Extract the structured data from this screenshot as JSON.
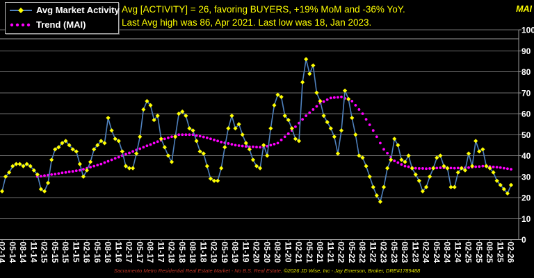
{
  "header": {
    "title_line1": "Avg [ACTIVITY] = 26, favoring BUYERS, +19% MoM and -36% YoY.",
    "title_line2": "Last Avg high was 86, Apr 2021. Last low was 18, Jan 2023.",
    "axis_unit_label": "MAI"
  },
  "legend": {
    "series1_label": "Avg Market Activity",
    "series2_label": "Trend (MAI)"
  },
  "footer": {
    "left": "Sacramento Metro Residential Real Estate Market - No B.S. Real Estate, ",
    "right": "©2026 JD Wise, Inc - Jay Emerson, Broker, DRE#1789488"
  },
  "colors": {
    "background": "#000000",
    "title_text": "#ffff00",
    "avg_line": "#4f81bd",
    "avg_marker": "#ffff00",
    "trend_dots": "#ff00ff",
    "gridline": "#6e6e6e",
    "axis_border": "#9a9a9a",
    "axis_text": "#ffffff",
    "footer_red": "#bf3626",
    "footer_yellow": "#e0e000"
  },
  "chart_data": {
    "type": "line",
    "title": "Avg [ACTIVITY] = 26, favoring BUYERS, +19% MoM and -36% YoY. Last Avg high was 86, Apr 2021. Last low was 18, Jan 2023.",
    "xlabel": "Month (MM-YY), monthly points Feb 2014 - Feb 2026",
    "ylabel": "MAI",
    "ylim": [
      0,
      100
    ],
    "y_ticks": [
      0,
      10,
      20,
      30,
      40,
      50,
      60,
      70,
      80,
      90,
      100
    ],
    "grid": "horizontal",
    "legend_position": "top-left",
    "x_start_month": "2014-02",
    "x_end_month": "2026-02",
    "x_tick_every_months": 3,
    "x_tick_labels": [
      "02-14",
      "05-14",
      "08-14",
      "11-14",
      "02-15",
      "05-15",
      "08-15",
      "11-15",
      "02-16",
      "05-16",
      "08-16",
      "11-16",
      "02-17",
      "05-17",
      "08-17",
      "11-17",
      "02-18",
      "05-18",
      "08-18",
      "11-18",
      "02-19",
      "05-19",
      "08-19",
      "11-19",
      "02-20",
      "05-20",
      "08-20",
      "11-20",
      "02-21",
      "05-21",
      "08-21",
      "11-21",
      "02-22",
      "05-22",
      "08-22",
      "11-22",
      "02-23",
      "05-23",
      "08-23",
      "11-23",
      "02-24",
      "05-24",
      "08-24",
      "11-24",
      "02-25",
      "05-25",
      "08-25",
      "11-25",
      "02-26"
    ],
    "series": [
      {
        "name": "Avg Market Activity",
        "style": "solid-line-with-diamond-markers",
        "start_index": 0,
        "values": [
          23,
          30,
          32,
          35,
          36,
          36,
          35,
          36,
          35,
          33,
          31,
          24,
          23,
          27,
          38,
          43,
          44,
          46,
          47,
          45,
          43,
          42,
          36,
          30,
          33,
          37,
          43,
          45,
          47,
          46,
          58,
          52,
          48,
          47,
          42,
          35,
          34,
          34,
          41,
          49,
          62,
          66,
          64,
          57,
          59,
          48,
          44,
          40,
          37,
          49,
          60,
          61,
          59,
          53,
          52,
          47,
          42,
          41,
          35,
          29,
          28,
          28,
          34,
          44,
          53,
          59,
          53,
          55,
          50,
          46,
          43,
          38,
          35,
          34,
          45,
          40,
          53,
          64,
          69,
          68,
          59,
          57,
          53,
          48,
          47,
          75,
          86,
          79,
          83,
          70,
          66,
          59,
          56,
          53,
          49,
          41,
          52,
          71,
          67,
          58,
          50,
          40,
          39,
          35,
          30,
          25,
          21,
          18,
          25,
          34,
          38,
          48,
          45,
          38,
          37,
          40,
          34,
          31,
          28,
          23,
          25,
          30,
          34,
          39,
          40,
          35,
          34,
          25,
          25,
          32,
          34,
          33,
          41,
          35,
          47,
          42,
          43,
          35,
          34,
          32,
          28,
          26,
          24,
          22,
          26
        ]
      },
      {
        "name": "Trend (MAI)",
        "style": "dotted",
        "start_index": 10,
        "values": [
          30.0,
          30.2,
          30.5,
          30.7,
          31.0,
          31.2,
          31.5,
          31.8,
          32.0,
          32.3,
          32.5,
          32.8,
          33.0,
          33.5,
          34.0,
          34.5,
          35.0,
          35.5,
          36.0,
          36.7,
          37.3,
          38.0,
          38.7,
          39.3,
          40.0,
          40.7,
          41.3,
          42.0,
          42.7,
          43.3,
          44.0,
          44.7,
          45.3,
          46.0,
          46.7,
          47.3,
          48.0,
          48.5,
          49.0,
          49.5,
          50.0,
          50.0,
          50.0,
          50.0,
          50.0,
          49.6,
          49.3,
          48.9,
          48.5,
          48.0,
          47.5,
          47.0,
          46.5,
          46.1,
          45.8,
          45.4,
          45.0,
          44.8,
          44.6,
          44.4,
          44.2,
          44.2,
          44.1,
          44.0,
          44.0,
          44.5,
          45.0,
          45.5,
          46.0,
          47.5,
          49.0,
          50.5,
          52.0,
          53.8,
          55.5,
          57.3,
          59.0,
          60.5,
          62.0,
          63.5,
          65.0,
          65.8,
          66.7,
          67.5,
          67.7,
          67.8,
          68.0,
          67.3,
          66.7,
          66.0,
          64.0,
          62.0,
          60.0,
          57.3,
          54.7,
          52.0,
          49.0,
          46.0,
          43.0,
          41.2,
          39.3,
          37.5,
          36.7,
          35.8,
          35.0,
          34.7,
          34.3,
          34.0,
          33.9,
          33.9,
          33.8,
          33.9,
          34.0,
          34.1,
          34.2,
          34.2,
          34.1,
          34.1,
          34.0,
          34.1,
          34.2,
          34.2,
          34.3,
          34.5,
          34.7,
          34.8,
          35.0,
          34.9,
          34.8,
          34.6,
          34.5,
          34.3,
          34.0,
          33.8,
          33.5
        ]
      }
    ],
    "annotations": {
      "current_value": 26,
      "mom_change_pct": 19,
      "yoy_change_pct": -36,
      "last_high": {
        "value": 86,
        "month": "Apr 2021"
      },
      "last_low": {
        "value": 18,
        "month": "Jan 2023"
      }
    }
  }
}
